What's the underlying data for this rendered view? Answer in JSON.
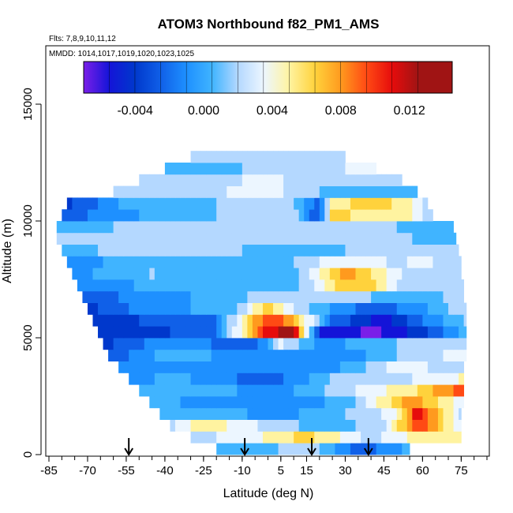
{
  "chart_data": {
    "type": "heatmap",
    "title": "ATOM3 Northbound f82_PM1_AMS",
    "subtitle_flights": "Flts: 7,8,9,10,11,12",
    "subtitle_dates": "MMDD: 1014,1017,1019,1020,1023,1025",
    "xlabel": "Latitude (deg N)",
    "ylabel": "Altitude (m)",
    "xlim": [
      -85,
      85
    ],
    "ylim": [
      0,
      17500
    ],
    "x_tick_labels": [
      "-85",
      "-70",
      "-55",
      "-40",
      "-25",
      "-10",
      "5",
      "15",
      "30",
      "45",
      "60",
      "75"
    ],
    "x_tick_values": [
      -85,
      -70,
      -55,
      -40,
      -25,
      -10,
      5,
      15,
      30,
      45,
      60,
      75
    ],
    "y_tick_labels": [
      "0",
      "5000",
      "10000",
      "15000"
    ],
    "y_tick_values": [
      0,
      5000,
      10000,
      15000
    ],
    "colorbar": {
      "range": [
        -0.007,
        0.0145
      ],
      "tick_labels": [
        "-0.004",
        "0.000",
        "0.004",
        "0.008",
        "0.012"
      ],
      "tick_values": [
        -0.004,
        0.0,
        0.004,
        0.008,
        0.012
      ],
      "bin_edges": [
        -0.007,
        -0.0055,
        -0.004,
        -0.0025,
        -0.001,
        0.0005,
        0.002,
        0.0035,
        0.005,
        0.0065,
        0.008,
        0.0095,
        0.011,
        0.0125,
        0.0145
      ],
      "colors": [
        "#7a1fe8",
        "#1414d8",
        "#0038cc",
        "#1060e8",
        "#1e90ff",
        "#40b4ff",
        "#b4d8ff",
        "#ecf6ff",
        "#fff3a0",
        "#ffd23c",
        "#ff9a1e",
        "#ff4a14",
        "#e60c0c",
        "#a01414"
      ]
    },
    "arrow_latitudes": [
      -54,
      -9,
      17,
      39
    ],
    "altitude_bins_m": [
      0,
      500,
      1000,
      1500,
      2000,
      2500,
      3000,
      3500,
      4000,
      4500,
      5000,
      5500,
      6000,
      6500,
      7000,
      7500,
      8000,
      8500,
      9000,
      9500,
      10000,
      10500,
      11000,
      11500,
      12000,
      12500
    ],
    "lat_extent_by_altitude_bin": [
      [
        -20,
        55
      ],
      [
        -30,
        75
      ],
      [
        -38,
        75
      ],
      [
        -42,
        75
      ],
      [
        -46,
        76
      ],
      [
        -50,
        76
      ],
      [
        -54,
        76
      ],
      [
        -58,
        76
      ],
      [
        -62,
        77
      ],
      [
        -64,
        77
      ],
      [
        -66,
        77
      ],
      [
        -68,
        77
      ],
      [
        -70,
        77
      ],
      [
        -72,
        76
      ],
      [
        -74,
        76
      ],
      [
        -76,
        75
      ],
      [
        -78,
        75
      ],
      [
        -80,
        74
      ],
      [
        -82,
        73
      ],
      [
        -82,
        72
      ],
      [
        -80,
        64
      ],
      [
        -78,
        62
      ],
      [
        -60,
        58
      ],
      [
        -50,
        52
      ],
      [
        -40,
        42
      ],
      [
        -30,
        30
      ]
    ],
    "value_anchors_by_altitude_bin": [
      [
        [
          -20,
          0.002
        ],
        [
          -5,
          0.001
        ],
        [
          15,
          0.003
        ],
        [
          35,
          -0.002
        ],
        [
          55,
          0.001
        ]
      ],
      [
        [
          -30,
          0.003
        ],
        [
          -10,
          0.004
        ],
        [
          15,
          0.007
        ],
        [
          40,
          0.003
        ],
        [
          60,
          0.006
        ],
        [
          75,
          0.005
        ]
      ],
      [
        [
          -38,
          0.003
        ],
        [
          -25,
          0.006
        ],
        [
          0,
          0.003
        ],
        [
          25,
          0.001
        ],
        [
          45,
          0.003
        ],
        [
          58,
          0.011
        ],
        [
          75,
          0.004
        ]
      ],
      [
        [
          -42,
          0.002
        ],
        [
          -20,
          0.001
        ],
        [
          5,
          0.0
        ],
        [
          30,
          0.002
        ],
        [
          50,
          0.004
        ],
        [
          58,
          0.012
        ],
        [
          75,
          0.003
        ]
      ],
      [
        [
          -46,
          0.002
        ],
        [
          -30,
          0.0
        ],
        [
          0,
          -0.001
        ],
        [
          30,
          0.001
        ],
        [
          55,
          0.009
        ],
        [
          75,
          0.004
        ]
      ],
      [
        [
          -50,
          0.001
        ],
        [
          -30,
          0.001
        ],
        [
          5,
          0.0
        ],
        [
          30,
          0.003
        ],
        [
          55,
          0.006
        ],
        [
          75,
          0.01
        ]
      ],
      [
        [
          -54,
          0.0
        ],
        [
          -35,
          0.001
        ],
        [
          0,
          -0.002
        ],
        [
          25,
          0.002
        ],
        [
          50,
          0.003
        ],
        [
          75,
          0.005
        ]
      ],
      [
        [
          -58,
          -0.001
        ],
        [
          -35,
          0.0
        ],
        [
          0,
          -0.001
        ],
        [
          25,
          0.0
        ],
        [
          50,
          0.004
        ],
        [
          75,
          0.003
        ]
      ],
      [
        [
          -62,
          -0.002
        ],
        [
          -40,
          0.001
        ],
        [
          -5,
          0.0
        ],
        [
          25,
          -0.001
        ],
        [
          50,
          0.002
        ],
        [
          75,
          0.004
        ]
      ],
      [
        [
          -64,
          -0.003
        ],
        [
          -40,
          0.0
        ],
        [
          -5,
          -0.002
        ],
        [
          5,
          0.004
        ],
        [
          20,
          0.0
        ],
        [
          40,
          0.001
        ],
        [
          60,
          0.003
        ],
        [
          77,
          0.002
        ]
      ],
      [
        [
          -66,
          -0.004
        ],
        [
          -45,
          -0.003
        ],
        [
          -20,
          -0.001
        ],
        [
          0,
          0.012
        ],
        [
          10,
          0.013
        ],
        [
          20,
          -0.004
        ],
        [
          40,
          -0.006
        ],
        [
          60,
          -0.003
        ],
        [
          77,
          0.001
        ]
      ],
      [
        [
          -68,
          -0.004
        ],
        [
          -45,
          -0.002
        ],
        [
          -20,
          -0.001
        ],
        [
          0,
          0.011
        ],
        [
          10,
          0.008
        ],
        [
          25,
          -0.001
        ],
        [
          45,
          -0.005
        ],
        [
          60,
          -0.001
        ],
        [
          77,
          0.002
        ]
      ],
      [
        [
          -70,
          -0.003
        ],
        [
          -45,
          0.0
        ],
        [
          -15,
          0.001
        ],
        [
          0,
          0.007
        ],
        [
          15,
          0.002
        ],
        [
          40,
          -0.002
        ],
        [
          60,
          0.0
        ],
        [
          76,
          0.003
        ]
      ],
      [
        [
          -72,
          -0.002
        ],
        [
          -45,
          0.0
        ],
        [
          -15,
          0.001
        ],
        [
          0,
          0.003
        ],
        [
          20,
          0.003
        ],
        [
          40,
          0.002
        ],
        [
          60,
          0.001
        ],
        [
          76,
          0.003
        ]
      ],
      [
        [
          -74,
          -0.001
        ],
        [
          -45,
          0.001
        ],
        [
          -10,
          0.002
        ],
        [
          10,
          0.001
        ],
        [
          30,
          0.008
        ],
        [
          40,
          0.007
        ],
        [
          55,
          0.002
        ],
        [
          76,
          0.003
        ]
      ],
      [
        [
          -76,
          0.0
        ],
        [
          -45,
          0.002
        ],
        [
          -10,
          0.001
        ],
        [
          10,
          0.001
        ],
        [
          30,
          0.009
        ],
        [
          45,
          0.005
        ],
        [
          60,
          0.002
        ],
        [
          75,
          0.002
        ]
      ],
      [
        [
          -78,
          -0.001
        ],
        [
          -50,
          0.002
        ],
        [
          -10,
          0.001
        ],
        [
          10,
          0.002
        ],
        [
          30,
          0.005
        ],
        [
          50,
          0.003
        ],
        [
          60,
          0.004
        ],
        [
          75,
          0.002
        ]
      ],
      [
        [
          -80,
          0.001
        ],
        [
          -50,
          0.003
        ],
        [
          -10,
          0.002
        ],
        [
          10,
          0.001
        ],
        [
          30,
          0.002
        ],
        [
          55,
          0.003
        ],
        [
          74,
          0.002
        ]
      ],
      [
        [
          -82,
          0.002
        ],
        [
          -50,
          0.002
        ],
        [
          -20,
          0.002
        ],
        [
          10,
          0.002
        ],
        [
          30,
          0.003
        ],
        [
          55,
          0.002
        ],
        [
          73,
          0.001
        ]
      ],
      [
        [
          -82,
          0.001
        ],
        [
          -60,
          0.002
        ],
        [
          -20,
          0.003
        ],
        [
          10,
          0.002
        ],
        [
          30,
          0.003
        ],
        [
          50,
          0.002
        ],
        [
          72,
          0.001
        ]
      ],
      [
        [
          -80,
          -0.002
        ],
        [
          -60,
          0.0
        ],
        [
          -20,
          0.002
        ],
        [
          10,
          0.003
        ],
        [
          20,
          -0.003
        ],
        [
          25,
          0.007
        ],
        [
          40,
          0.006
        ],
        [
          55,
          0.005
        ],
        [
          64,
          0.002
        ]
      ],
      [
        [
          -78,
          -0.003
        ],
        [
          -55,
          0.001
        ],
        [
          -20,
          0.002
        ],
        [
          10,
          0.002
        ],
        [
          20,
          -0.002
        ],
        [
          25,
          0.006
        ],
        [
          40,
          0.007
        ],
        [
          55,
          0.006
        ],
        [
          62,
          0.002
        ]
      ],
      [
        [
          -60,
          0.002
        ],
        [
          -30,
          0.003
        ],
        [
          0,
          0.004
        ],
        [
          20,
          0.002
        ],
        [
          40,
          0.001
        ],
        [
          58,
          0.002
        ]
      ],
      [
        [
          -50,
          0.002
        ],
        [
          -20,
          0.003
        ],
        [
          0,
          0.004
        ],
        [
          20,
          0.002
        ],
        [
          40,
          0.002
        ],
        [
          52,
          0.003
        ]
      ],
      [
        [
          -40,
          0.002
        ],
        [
          -20,
          0.001
        ],
        [
          0,
          0.003
        ],
        [
          20,
          0.003
        ],
        [
          42,
          0.004
        ]
      ],
      [
        [
          -30,
          0.002
        ],
        [
          0,
          0.003
        ],
        [
          30,
          0.003
        ]
      ]
    ]
  }
}
